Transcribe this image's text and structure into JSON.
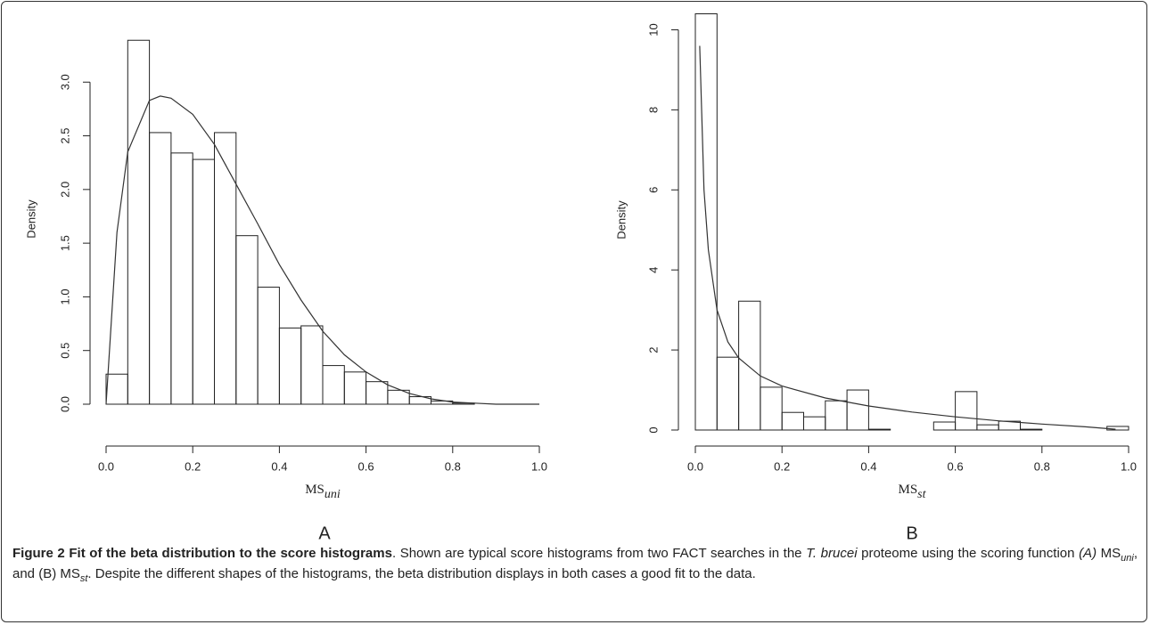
{
  "chart_data": [
    {
      "type": "histogram",
      "panel": "A",
      "ylabel": "Density",
      "xlabel": {
        "main": "MS",
        "sub": "uni"
      },
      "bins": [
        0,
        0.05,
        0.1,
        0.15,
        0.2,
        0.25,
        0.3,
        0.35,
        0.4,
        0.45,
        0.5,
        0.55,
        0.6,
        0.65,
        0.7,
        0.75,
        0.8,
        0.85,
        0.9,
        0.95,
        1.0
      ],
      "values": [
        0.28,
        3.39,
        2.53,
        2.34,
        2.28,
        2.53,
        1.57,
        1.09,
        0.71,
        0.73,
        0.36,
        0.3,
        0.21,
        0.13,
        0.07,
        0.03,
        0.01,
        0,
        0,
        0
      ],
      "curve": {
        "x": [
          0,
          0.025,
          0.05,
          0.1,
          0.125,
          0.15,
          0.2,
          0.25,
          0.3,
          0.35,
          0.4,
          0.45,
          0.5,
          0.55,
          0.6,
          0.65,
          0.7,
          0.75,
          0.8,
          0.85,
          0.9,
          1.0
        ],
        "values": [
          0,
          1.6,
          2.35,
          2.83,
          2.87,
          2.85,
          2.7,
          2.42,
          2.05,
          1.68,
          1.3,
          0.97,
          0.68,
          0.46,
          0.3,
          0.18,
          0.1,
          0.05,
          0.02,
          0.01,
          0,
          0
        ]
      },
      "xlim": [
        0,
        1
      ],
      "xticks": [
        {
          "value": 0,
          "label": "0.0"
        },
        0.2,
        0.4,
        0.6,
        0.8,
        {
          "value": 1,
          "label": "1.0"
        }
      ],
      "ylim": [
        0,
        3.45
      ],
      "yticks": [
        {
          "value": 0,
          "label": "0.0"
        },
        0.5,
        {
          "value": 1,
          "label": "1.0"
        },
        1.5,
        {
          "value": 2,
          "label": "2.0"
        },
        2.5,
        {
          "value": 3,
          "label": "3.0"
        }
      ]
    },
    {
      "type": "histogram",
      "panel": "B",
      "ylabel": "Density",
      "xlabel": {
        "main": "MS",
        "sub": "st"
      },
      "bins": [
        0,
        0.05,
        0.1,
        0.15,
        0.2,
        0.25,
        0.3,
        0.35,
        0.4,
        0.45,
        0.5,
        0.55,
        0.6,
        0.65,
        0.7,
        0.75,
        0.8,
        0.85,
        0.9,
        0.95,
        1.0
      ],
      "values": [
        10.4,
        1.82,
        3.22,
        1.07,
        0.44,
        0.33,
        0.73,
        1.0,
        0.02,
        0,
        0,
        0.2,
        0.96,
        0.13,
        0.22,
        0.02,
        0,
        0,
        0,
        0.09
      ],
      "curve": {
        "x": [
          0.01,
          0.02,
          0.03,
          0.05,
          0.075,
          0.1,
          0.15,
          0.2,
          0.3,
          0.4,
          0.5,
          0.6,
          0.7,
          0.8,
          0.9,
          0.97
        ],
        "values": [
          9.6,
          6,
          4.5,
          3.0,
          2.2,
          1.8,
          1.35,
          1.1,
          0.8,
          0.6,
          0.45,
          0.33,
          0.23,
          0.15,
          0.08,
          0.02
        ]
      },
      "xlim": [
        0,
        1
      ],
      "xticks": [
        {
          "value": 0,
          "label": "0.0"
        },
        0.2,
        0.4,
        0.6,
        0.8,
        {
          "value": 1,
          "label": "1.0"
        }
      ],
      "ylim": [
        0,
        10.5
      ],
      "yticks": [
        0,
        2,
        4,
        6,
        8,
        10
      ]
    }
  ],
  "caption": [
    {
      "text": "Figure 2 Fit of the beta distribution to the score histograms",
      "style": "bold"
    },
    {
      "text": ". Shown are typical score histograms from two FACT searches in the ",
      "style": "normal"
    },
    {
      "text": "T. brucei",
      "style": "italic"
    },
    {
      "text": " proteome using the scoring function ",
      "style": "normal"
    },
    {
      "text": "(A)",
      "style": "italic"
    },
    {
      "text": " MS",
      "style": "normal"
    },
    {
      "text": "uni",
      "style": "sub"
    },
    {
      "text": ", and (B) MS",
      "style": "normal"
    },
    {
      "text": "st",
      "style": "sub"
    },
    {
      "text": ". Despite the different shapes of the histograms, the beta distribution displays in both cases a good fit to the data.",
      "style": "normal"
    }
  ]
}
